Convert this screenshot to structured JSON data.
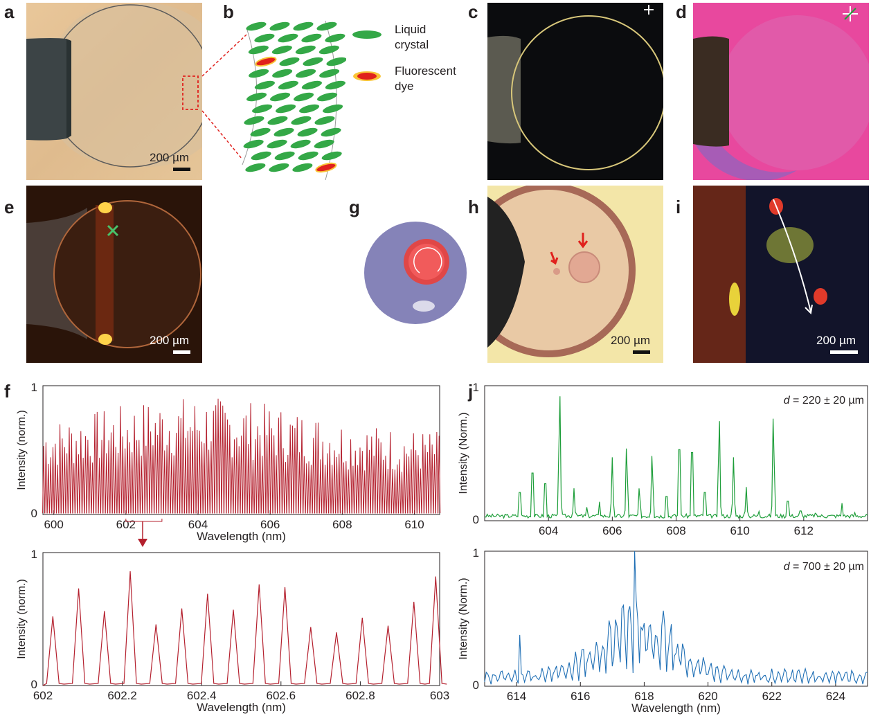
{
  "labels": {
    "a": "a",
    "b": "b",
    "c": "c",
    "d": "d",
    "e": "e",
    "f": "f",
    "g": "g",
    "h": "h",
    "i": "i",
    "j": "j"
  },
  "scale_bar": "200 µm",
  "legend": {
    "lc": "Liquid crystal",
    "lc_line1": "Liquid",
    "lc_line2": "crystal",
    "dye_line1": "Fluorescent",
    "dye_line2": "dye"
  },
  "colors": {
    "f_series": "#b4202e",
    "j_top": "#1e9e3a",
    "j_bottom": "#1f6fb5"
  },
  "chart_data": [
    {
      "type": "line",
      "panel": "f-top",
      "xlabel": "Wavelength (nm)",
      "ylabel": "Intensity (norm.)",
      "xlim": [
        599.7,
        610.7
      ],
      "ylim": [
        0,
        1
      ],
      "xticks": [
        600,
        602,
        604,
        606,
        608,
        610
      ],
      "yticks": [
        0,
        1
      ],
      "series": [
        {
          "values_note": "",
          "peak_spacing_nm": 0.0645
        }
      ]
    },
    {
      "type": "line",
      "panel": "f-bottom",
      "xlabel": "Wavelength (nm)",
      "ylabel": "Intensity (norm.)",
      "xlim": [
        602,
        603
      ],
      "ylim": [
        0,
        1
      ],
      "xticks": [
        602,
        602.2,
        602.4,
        602.6,
        602.8,
        603
      ],
      "yticks": [
        0,
        1
      ],
      "series": [
        {
          "peaks_x": [
            602.025,
            602.09,
            602.155,
            602.22,
            602.285,
            602.35,
            602.415,
            602.48,
            602.545,
            602.61,
            602.675,
            602.74,
            602.805,
            602.87,
            602.935,
            602.99
          ],
          "peaks_y": [
            0.52,
            0.73,
            0.56,
            0.86,
            0.46,
            0.58,
            0.69,
            0.57,
            0.76,
            0.74,
            0.44,
            0.4,
            0.51,
            0.45,
            0.63,
            0.82
          ]
        }
      ]
    },
    {
      "type": "line",
      "panel": "j-top",
      "xlabel": "",
      "ylabel": "Intensity (Norm.)",
      "annotation": "d = 220 ± 20 µm",
      "xlim": [
        602,
        614
      ],
      "ylim": [
        0,
        1
      ],
      "xticks": [
        604,
        606,
        608,
        610,
        612
      ],
      "yticks": [
        0,
        1
      ],
      "series": [
        {
          "peaks_x": [
            603.1,
            603.5,
            603.9,
            604.35,
            604.8,
            605.2,
            605.6,
            606.0,
            606.45,
            606.85,
            607.25,
            607.7,
            608.1,
            608.5,
            608.9,
            609.35,
            609.8,
            610.2,
            610.6,
            611.05,
            611.5,
            611.9,
            612.35,
            612.75,
            613.2,
            613.6
          ],
          "peaks_y": [
            0.29,
            0.49,
            0.38,
            1.0,
            0.24,
            0.1,
            0.14,
            0.47,
            0.58,
            0.26,
            0.52,
            0.25,
            0.73,
            0.7,
            0.29,
            0.8,
            0.47,
            0.25,
            0.07,
            0.82,
            0.2,
            0.1,
            0.06,
            0.04,
            0.13,
            0.06
          ]
        }
      ]
    },
    {
      "type": "line",
      "panel": "j-bottom",
      "xlabel": "Wavelength (nm)",
      "ylabel": "Intensity (Norm.)",
      "annotation": "d = 700 ± 20 µm",
      "xlim": [
        613,
        625
      ],
      "ylim": [
        0,
        1
      ],
      "xticks": [
        614,
        616,
        618,
        620,
        622,
        624
      ],
      "yticks": [
        0,
        1
      ],
      "series": [
        {
          "center": 617.7,
          "peak_value": 1.0
        }
      ]
    }
  ],
  "text": {
    "f_x_ticks": [
      "600",
      "602",
      "604",
      "606",
      "608",
      "610"
    ],
    "f2_x_ticks": [
      "602",
      "602.2",
      "602.4",
      "602.6",
      "602.8",
      "603"
    ],
    "j_top_x_ticks": [
      "604",
      "606",
      "608",
      "610",
      "612"
    ],
    "j_bot_x_ticks": [
      "614",
      "616",
      "618",
      "620",
      "622",
      "624"
    ],
    "xlabel": "Wavelength (nm)",
    "ylabel_f": "Intensity (norm.)",
    "ylabel_j": "Intensity (Norm.)",
    "y1": "1",
    "y0": "0",
    "j_top_ann_d": "d",
    "j_top_ann_rest": " = 220 ± 20 µm",
    "j_bot_ann_rest": " = 700 ± 20 µm"
  }
}
